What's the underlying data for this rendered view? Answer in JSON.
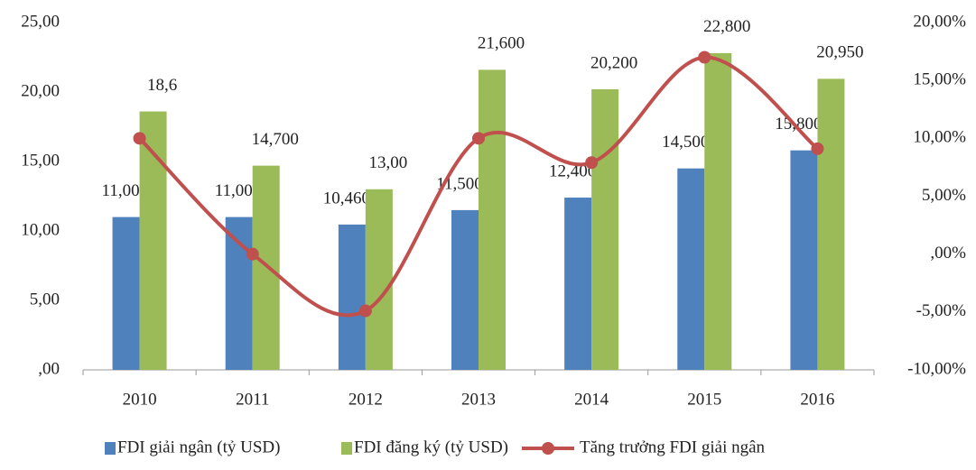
{
  "chart_data": {
    "type": "bar-line",
    "categories": [
      "2010",
      "2011",
      "2012",
      "2013",
      "2014",
      "2015",
      "2016"
    ],
    "series": [
      {
        "name": "FDI giải ngân (tỷ USD)",
        "color": "#4f81bd",
        "type": "bar",
        "values": [
          11,
          11,
          10.46,
          11.5,
          12.4,
          14.5,
          15.8
        ],
        "value_labels": [
          "11,00",
          "11,00",
          "10,460",
          "11,500",
          "12,400",
          "14,500",
          "15,800"
        ]
      },
      {
        "name": "FDI đăng ký (tỷ USD)",
        "color": "#9bbb59",
        "type": "bar",
        "values": [
          18.6,
          14.7,
          13,
          21.6,
          20.2,
          22.8,
          20.95
        ],
        "value_labels": [
          "18,6",
          "14,700",
          "13,00",
          "21,600",
          "20,200",
          "22,800",
          "20,950"
        ]
      },
      {
        "name": "Tăng trưởng FDI giải ngân",
        "color": "#c0504d",
        "type": "line",
        "axis": "y2",
        "values": [
          10,
          0,
          -4.9,
          10,
          7.9,
          17,
          9.1
        ]
      }
    ],
    "ylim": [
      0,
      25
    ],
    "yticks": [
      {
        "value": 0,
        "label": ",00"
      },
      {
        "value": 5,
        "label": "5,00"
      },
      {
        "value": 10,
        "label": "10,00"
      },
      {
        "value": 15,
        "label": "15,00"
      },
      {
        "value": 20,
        "label": "20,00"
      },
      {
        "value": 25,
        "label": "25,00"
      }
    ],
    "y2lim": [
      -10,
      20
    ],
    "y2ticks": [
      {
        "value": -10,
        "label": "-10,00%"
      },
      {
        "value": -5,
        "label": "-5,00%"
      },
      {
        "value": 0,
        "label": ",00%"
      },
      {
        "value": 5,
        "label": "5,00%"
      },
      {
        "value": 10,
        "label": "10,00%"
      },
      {
        "value": 15,
        "label": "15,00%"
      },
      {
        "value": 20,
        "label": "20,00%"
      }
    ],
    "legend": "bottom"
  }
}
